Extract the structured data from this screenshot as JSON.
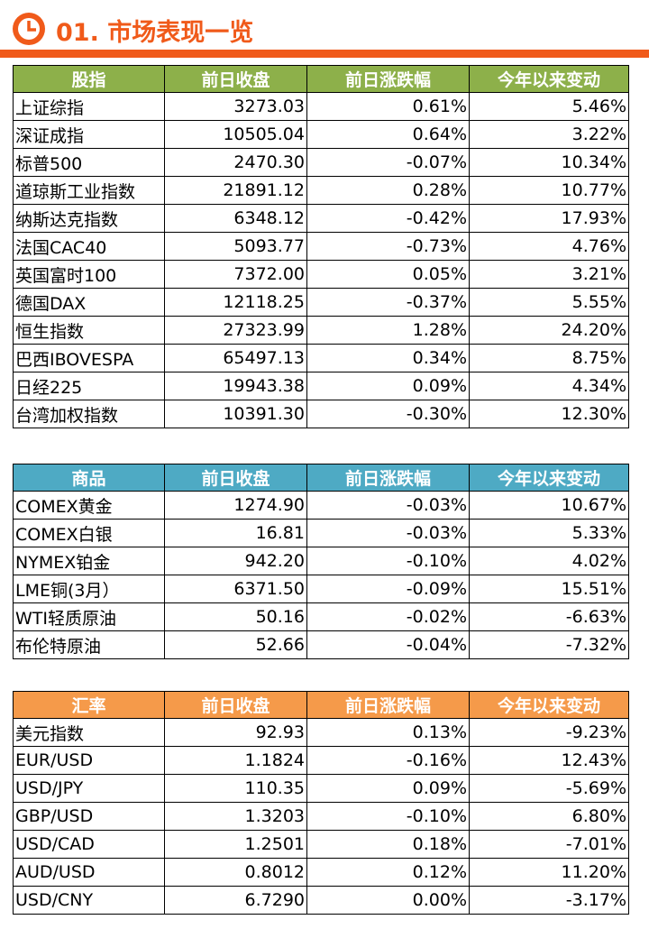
{
  "header": {
    "title": "01. 市场表现一览"
  },
  "tables": [
    {
      "columns": [
        "股指",
        "前日收盘",
        "前日涨跌幅",
        "今年以来变动"
      ],
      "rows": [
        [
          "上证综指",
          "3273.03",
          "0.61%",
          "5.46%"
        ],
        [
          "深证成指",
          "10505.04",
          "0.64%",
          "3.22%"
        ],
        [
          "标普500",
          "2470.30",
          "-0.07%",
          "10.34%"
        ],
        [
          "道琼斯工业指数",
          "21891.12",
          "0.28%",
          "10.77%"
        ],
        [
          "纳斯达克指数",
          "6348.12",
          "-0.42%",
          "17.93%"
        ],
        [
          "法国CAC40",
          "5093.77",
          "-0.73%",
          "4.76%"
        ],
        [
          "英国富时100",
          "7372.00",
          "0.05%",
          "3.21%"
        ],
        [
          "德国DAX",
          "12118.25",
          "-0.37%",
          "5.55%"
        ],
        [
          "恒生指数",
          "27323.99",
          "1.28%",
          "24.20%"
        ],
        [
          "巴西IBOVESPA",
          "65497.13",
          "0.34%",
          "8.75%"
        ],
        [
          "日经225",
          "19943.38",
          "0.09%",
          "4.34%"
        ],
        [
          "台湾加权指数",
          "10391.30",
          "-0.30%",
          "12.30%"
        ]
      ]
    },
    {
      "columns": [
        "商品",
        "前日收盘",
        "前日涨跌幅",
        "今年以来变动"
      ],
      "rows": [
        [
          "COMEX黄金",
          "1274.90",
          "-0.03%",
          "10.67%"
        ],
        [
          "COMEX白银",
          "16.81",
          "-0.03%",
          "5.33%"
        ],
        [
          "NYMEX铂金",
          "942.20",
          "-0.10%",
          "4.02%"
        ],
        [
          "LME铜(3月）",
          "6371.50",
          "-0.09%",
          "15.51%"
        ],
        [
          "WTI轻质原油",
          "50.16",
          "-0.02%",
          "-6.63%"
        ],
        [
          "布伦特原油",
          "52.66",
          "-0.04%",
          "-7.32%"
        ]
      ]
    },
    {
      "columns": [
        "汇率",
        "前日收盘",
        "前日涨跌幅",
        "今年以来变动"
      ],
      "rows": [
        [
          "美元指数",
          "92.93",
          "0.13%",
          "-9.23%"
        ],
        [
          "EUR/USD",
          "1.1824",
          "-0.16%",
          "12.43%"
        ],
        [
          "USD/JPY",
          "110.35",
          "0.09%",
          "-5.69%"
        ],
        [
          "GBP/USD",
          "1.3203",
          "-0.10%",
          "6.80%"
        ],
        [
          "USD/CAD",
          "1.2501",
          "0.18%",
          "-7.01%"
        ],
        [
          "AUD/USD",
          "0.8012",
          "0.12%",
          "11.20%"
        ],
        [
          "USD/CNY",
          "6.7290",
          "0.00%",
          "-3.17%"
        ]
      ]
    }
  ]
}
